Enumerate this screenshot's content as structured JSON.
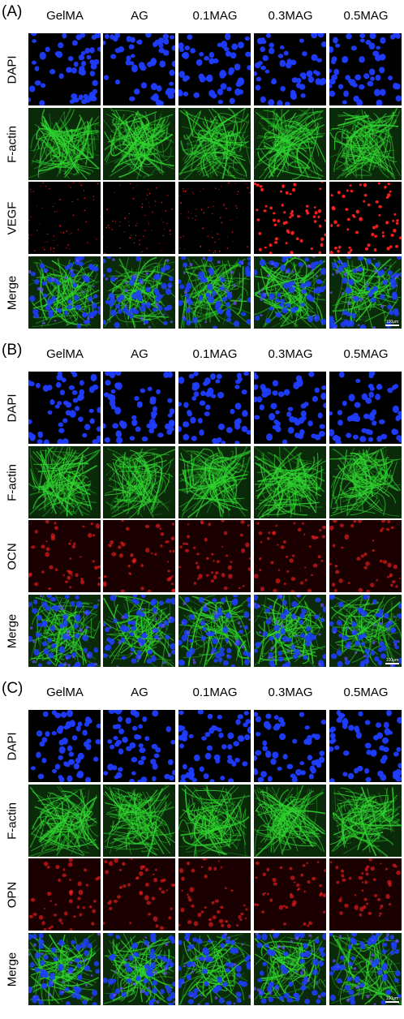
{
  "columns": [
    "GelMA",
    "AG",
    "0.1MAG",
    "0.3MAG",
    "0.5MAG"
  ],
  "panels": [
    {
      "label": "(A)",
      "rows": [
        "DAPI",
        "F-actin",
        "VEGF",
        "Merge"
      ],
      "scale_bar": "100μm",
      "stain_colors": [
        "#1f3dff",
        "#2fd32f",
        "#ff2020",
        "#6a4cff"
      ]
    },
    {
      "label": "(B)",
      "rows": [
        "DAPI",
        "F-actin",
        "OCN",
        "Merge"
      ],
      "scale_bar": "100μm",
      "stain_colors": [
        "#1f3dff",
        "#2fd32f",
        "#ff2020",
        "#6a4cff"
      ]
    },
    {
      "label": "(C)",
      "rows": [
        "DAPI",
        "F-actin",
        "OPN",
        "Merge"
      ],
      "scale_bar": "100μm",
      "stain_colors": [
        "#1f3dff",
        "#2fd32f",
        "#ff2020",
        "#6a4cff"
      ]
    }
  ]
}
